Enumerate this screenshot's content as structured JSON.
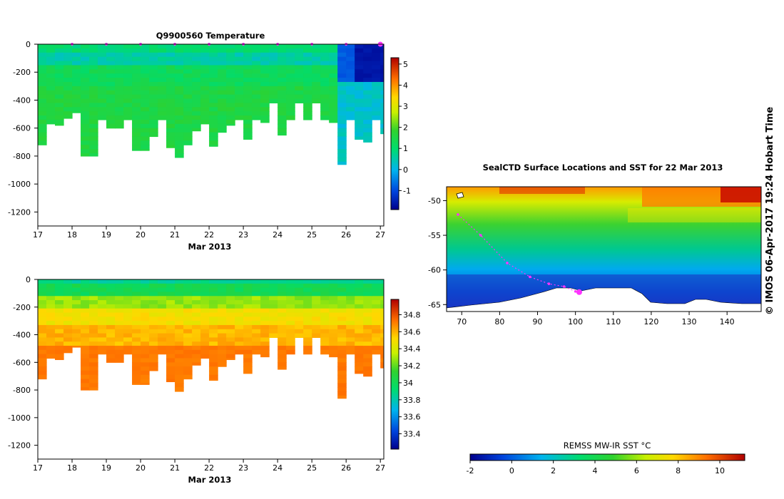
{
  "chart_data": [
    {
      "type": "heatmap",
      "id": "temperature-section",
      "title": "Q9900560  Temperature",
      "xlabel": "Mar 2013",
      "ylabel": "",
      "xlim": [
        17,
        27.1
      ],
      "ylim": [
        -1300,
        0
      ],
      "x_ticks": [
        "17",
        "18",
        "19",
        "20",
        "21",
        "22",
        "23",
        "24",
        "25",
        "26",
        "27"
      ],
      "y_ticks": [
        "0",
        "-200",
        "-400",
        "-600",
        "-800",
        "-1000",
        "-1200"
      ],
      "colorbar": {
        "range": [
          -1.9,
          5.3
        ],
        "ticks": [
          "-1",
          "0",
          "1",
          "2",
          "3",
          "4",
          "5"
        ]
      },
      "profile_times": [
        17.0,
        17.25,
        17.5,
        17.75,
        18.0,
        18.25,
        18.5,
        18.75,
        19.0,
        19.25,
        19.5,
        19.75,
        20.0,
        20.25,
        20.5,
        20.75,
        21.0,
        21.25,
        21.5,
        21.75,
        22.0,
        22.25,
        22.5,
        22.75,
        23.0,
        23.25,
        23.5,
        23.75,
        24.0,
        24.25,
        24.5,
        24.75,
        25.0,
        25.25,
        25.5,
        25.75,
        26.0,
        26.25,
        26.5,
        26.75,
        27.0
      ],
      "profile_max_depth": [
        720,
        570,
        580,
        530,
        490,
        800,
        800,
        540,
        600,
        600,
        540,
        760,
        760,
        660,
        540,
        740,
        810,
        720,
        620,
        570,
        730,
        630,
        580,
        540,
        680,
        540,
        560,
        420,
        650,
        540,
        420,
        540,
        420,
        540,
        560,
        860,
        540,
        680,
        700,
        540,
        640
      ],
      "surface_markers_x": [
        18.0,
        19.0,
        20.0,
        21.0,
        22.0,
        23.0,
        24.0,
        25.0,
        26.0,
        27.0
      ]
    },
    {
      "type": "heatmap",
      "id": "salinity-section",
      "title": "",
      "xlabel": "Mar 2013",
      "ylabel": "",
      "xlim": [
        17,
        27.1
      ],
      "ylim": [
        -1300,
        0
      ],
      "x_ticks": [
        "17",
        "18",
        "19",
        "20",
        "21",
        "22",
        "23",
        "24",
        "25",
        "26",
        "27"
      ],
      "y_ticks": [
        "0",
        "-200",
        "-400",
        "-600",
        "-800",
        "-1000",
        "-1200"
      ],
      "colorbar": {
        "range": [
          33.22,
          34.98
        ],
        "ticks": [
          "33.4",
          "33.6",
          "33.8",
          "34",
          "34.2",
          "34.4",
          "34.6",
          "34.8"
        ]
      },
      "profile_times": [
        17.0,
        17.25,
        17.5,
        17.75,
        18.0,
        18.25,
        18.5,
        18.75,
        19.0,
        19.25,
        19.5,
        19.75,
        20.0,
        20.25,
        20.5,
        20.75,
        21.0,
        21.25,
        21.5,
        21.75,
        22.0,
        22.25,
        22.5,
        22.75,
        23.0,
        23.25,
        23.5,
        23.75,
        24.0,
        24.25,
        24.5,
        24.75,
        25.0,
        25.25,
        25.5,
        25.75,
        26.0,
        26.25,
        26.5,
        26.75,
        27.0
      ],
      "profile_max_depth": [
        720,
        570,
        580,
        530,
        490,
        800,
        800,
        540,
        600,
        600,
        540,
        760,
        760,
        660,
        540,
        740,
        810,
        720,
        620,
        570,
        730,
        630,
        580,
        540,
        680,
        540,
        560,
        420,
        650,
        540,
        420,
        540,
        420,
        540,
        560,
        860,
        540,
        680,
        700,
        540,
        640
      ]
    },
    {
      "type": "heatmap",
      "id": "sst-map",
      "title": "SealCTD Surface Locations and SST for 22 Mar 2013",
      "xlabel": "",
      "ylabel": "",
      "xlim": [
        66,
        149
      ],
      "ylim": [
        -66,
        -48
      ],
      "x_ticks": [
        "70",
        "80",
        "90",
        "100",
        "110",
        "120",
        "130",
        "140"
      ],
      "y_ticks": [
        "-50",
        "-55",
        "-60",
        "-65"
      ],
      "track": [
        [
          69,
          -52
        ],
        [
          75,
          -55
        ],
        [
          82,
          -59
        ],
        [
          88,
          -61
        ],
        [
          93,
          -62
        ],
        [
          97,
          -62.4
        ],
        [
          100,
          -63.1
        ]
      ],
      "current_position": [
        101,
        -63.2
      ],
      "colorbar": {
        "label": "REMSS MW-IR SST °C",
        "range": [
          -2,
          11.2
        ],
        "ticks": [
          "-2",
          "0",
          "2",
          "4",
          "6",
          "8",
          "10"
        ]
      }
    }
  ],
  "credit": "© IMOS 06-Apr-2017 19:24 Hobart Time"
}
